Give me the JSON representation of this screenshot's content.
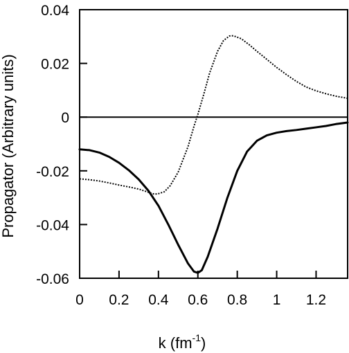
{
  "chart_data": {
    "type": "line",
    "title": "",
    "xlabel": "k (fm",
    "xlabel_superscript": "-1",
    "xlabel_suffix": ")",
    "ylabel": "Propagator (Arbitrary units)",
    "xlim": [
      0,
      1.36
    ],
    "ylim": [
      -0.06,
      0.04
    ],
    "x_ticks": [
      0,
      0.2,
      0.4,
      0.6,
      0.8,
      1,
      1.2
    ],
    "x_tick_labels": [
      "0",
      "0.2",
      "0.4",
      "0.6",
      "0.8",
      "1",
      "1.2"
    ],
    "y_ticks": [
      0.04,
      0.02,
      0,
      -0.02,
      -0.04,
      -0.06
    ],
    "y_tick_labels": [
      "0.04",
      "0.02",
      "0",
      "-0.02",
      "-0.04",
      "-0.06"
    ],
    "grid": false,
    "legend": "none",
    "zero_line": true,
    "series": [
      {
        "style": "solid",
        "color": "#000000",
        "points": [
          [
            0,
            -0.012
          ],
          [
            0.05,
            -0.0123
          ],
          [
            0.1,
            -0.0132
          ],
          [
            0.15,
            -0.0148
          ],
          [
            0.2,
            -0.017
          ],
          [
            0.25,
            -0.0198
          ],
          [
            0.3,
            -0.0232
          ],
          [
            0.35,
            -0.0275
          ],
          [
            0.4,
            -0.033
          ],
          [
            0.45,
            -0.04
          ],
          [
            0.5,
            -0.0475
          ],
          [
            0.55,
            -0.0545
          ],
          [
            0.58,
            -0.0575
          ],
          [
            0.6,
            -0.058
          ],
          [
            0.62,
            -0.057
          ],
          [
            0.65,
            -0.052
          ],
          [
            0.7,
            -0.0415
          ],
          [
            0.75,
            -0.03
          ],
          [
            0.8,
            -0.02
          ],
          [
            0.85,
            -0.0128
          ],
          [
            0.9,
            -0.0088
          ],
          [
            0.95,
            -0.0068
          ],
          [
            1.0,
            -0.0058
          ],
          [
            1.05,
            -0.0052
          ],
          [
            1.1,
            -0.0048
          ],
          [
            1.15,
            -0.0043
          ],
          [
            1.2,
            -0.0038
          ],
          [
            1.25,
            -0.0033
          ],
          [
            1.3,
            -0.0026
          ],
          [
            1.36,
            -0.002
          ]
        ]
      },
      {
        "style": "dotted",
        "color": "#000000",
        "points": [
          [
            0,
            -0.023
          ],
          [
            0.05,
            -0.0233
          ],
          [
            0.1,
            -0.0238
          ],
          [
            0.15,
            -0.0245
          ],
          [
            0.2,
            -0.0253
          ],
          [
            0.25,
            -0.026
          ],
          [
            0.3,
            -0.0268
          ],
          [
            0.35,
            -0.028
          ],
          [
            0.38,
            -0.0287
          ],
          [
            0.4,
            -0.0285
          ],
          [
            0.43,
            -0.0278
          ],
          [
            0.46,
            -0.0255
          ],
          [
            0.5,
            -0.0205
          ],
          [
            0.55,
            -0.011
          ],
          [
            0.58,
            -0.0035
          ],
          [
            0.6,
            0.001
          ],
          [
            0.63,
            0.0085
          ],
          [
            0.66,
            0.0165
          ],
          [
            0.7,
            0.0245
          ],
          [
            0.73,
            0.0285
          ],
          [
            0.76,
            0.0302
          ],
          [
            0.78,
            0.0303
          ],
          [
            0.82,
            0.0292
          ],
          [
            0.86,
            0.027
          ],
          [
            0.9,
            0.0245
          ],
          [
            0.95,
            0.0215
          ],
          [
            1.0,
            0.0185
          ],
          [
            1.05,
            0.0158
          ],
          [
            1.1,
            0.0133
          ],
          [
            1.15,
            0.0112
          ],
          [
            1.2,
            0.0098
          ],
          [
            1.25,
            0.0087
          ],
          [
            1.3,
            0.0078
          ],
          [
            1.36,
            0.007
          ]
        ]
      }
    ]
  }
}
